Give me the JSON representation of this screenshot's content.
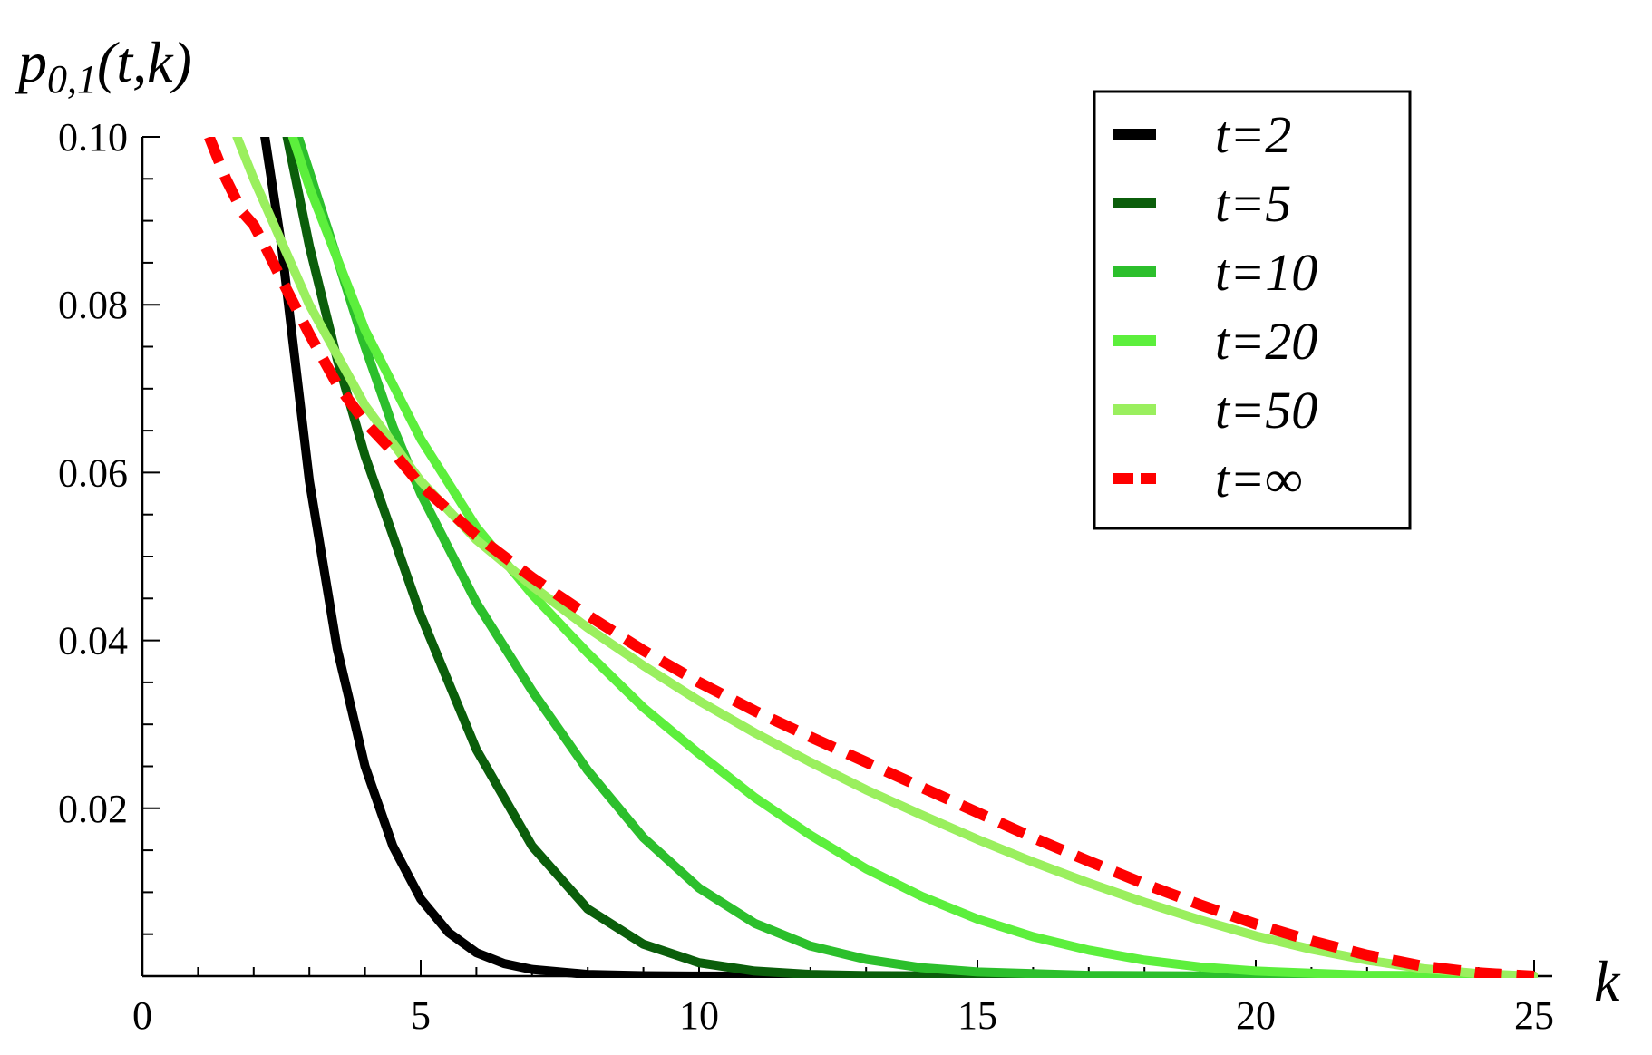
{
  "chart_data": {
    "type": "line",
    "title": "",
    "xlabel": "k",
    "ylabel": "p0,1(t,k)",
    "ylabel_parts": {
      "main": "p",
      "subscript": "0,1",
      "args": "(t,k)"
    },
    "xlim": [
      0,
      25
    ],
    "ylim": [
      0,
      0.1
    ],
    "x_ticks": [
      0,
      5,
      10,
      15,
      20,
      25
    ],
    "x_tick_labels": [
      "0",
      "5",
      "10",
      "15",
      "20",
      "25"
    ],
    "y_ticks": [
      0.02,
      0.04,
      0.06,
      0.08,
      0.1
    ],
    "y_tick_labels": [
      "0.02",
      "0.04",
      "0.06",
      "0.08",
      "0.10"
    ],
    "grid": false,
    "legend_position": "top-right",
    "series": [
      {
        "name": "t=2",
        "color": "#000000",
        "dashed": false,
        "x": [
          2.2,
          2.5,
          3,
          3.5,
          4,
          4.5,
          5,
          5.5,
          6,
          6.5,
          7,
          8,
          9,
          10,
          12,
          15,
          20,
          25
        ],
        "y": [
          0.1,
          0.087,
          0.059,
          0.039,
          0.025,
          0.0155,
          0.0092,
          0.0052,
          0.0028,
          0.0015,
          0.0008,
          0.0002,
          5e-05,
          1e-05,
          0,
          0,
          0,
          0
        ]
      },
      {
        "name": "t=5",
        "color": "#0b5e0b",
        "dashed": false,
        "x": [
          2.6,
          3,
          3.5,
          4,
          5,
          6,
          7,
          8,
          9,
          10,
          11,
          12,
          13,
          15,
          20,
          25
        ],
        "y": [
          0.1,
          0.087,
          0.0735,
          0.062,
          0.043,
          0.027,
          0.0155,
          0.008,
          0.0038,
          0.0016,
          0.0006,
          0.0002,
          7e-05,
          1e-05,
          0,
          0
        ]
      },
      {
        "name": "t=10",
        "color": "#2cbf2c",
        "dashed": false,
        "x": [
          2.8,
          3.5,
          4,
          4.5,
          5,
          6,
          7,
          8,
          9,
          10,
          11,
          12,
          13,
          14,
          15,
          17,
          20,
          25
        ],
        "y": [
          0.1,
          0.0855,
          0.075,
          0.0655,
          0.0575,
          0.0445,
          0.034,
          0.0245,
          0.0165,
          0.0105,
          0.0063,
          0.0036,
          0.002,
          0.001,
          0.0005,
          0.0001,
          0,
          0
        ]
      },
      {
        "name": "t=20",
        "color": "#5cef3c",
        "dashed": false,
        "x": [
          2.7,
          3,
          4,
          5,
          6,
          7,
          8,
          9,
          10,
          11,
          12,
          13,
          14,
          15,
          16,
          17,
          18,
          19,
          20,
          22,
          25
        ],
        "y": [
          0.1,
          0.094,
          0.077,
          0.064,
          0.0535,
          0.0455,
          0.0385,
          0.032,
          0.0265,
          0.0213,
          0.0168,
          0.0128,
          0.0095,
          0.0068,
          0.0047,
          0.0031,
          0.0019,
          0.0011,
          0.0006,
          0.0001,
          0
        ]
      },
      {
        "name": "t=50",
        "color": "#9aef5e",
        "dashed": false,
        "x": [
          1.7,
          2,
          3,
          4,
          5,
          6,
          7,
          8,
          9,
          10,
          11,
          12,
          13,
          14,
          15,
          16,
          17,
          18,
          19,
          20,
          21,
          22,
          23,
          24,
          25
        ],
        "y": [
          0.1,
          0.095,
          0.08,
          0.068,
          0.059,
          0.052,
          0.0465,
          0.0415,
          0.037,
          0.0328,
          0.029,
          0.0255,
          0.0222,
          0.0192,
          0.0163,
          0.0136,
          0.0111,
          0.0088,
          0.0067,
          0.0048,
          0.0032,
          0.0019,
          0.0009,
          0.0003,
          0
        ]
      },
      {
        "name": "t=∞",
        "color": "#ff0000",
        "dashed": true,
        "x": [
          1.2,
          1.5,
          1.8,
          2,
          2.2,
          2.5,
          3,
          3.5,
          4,
          4.5,
          5,
          6,
          7,
          8,
          9,
          10,
          11,
          12,
          13,
          14,
          15,
          16,
          17,
          18,
          19,
          20,
          21,
          22,
          23,
          24,
          25
        ],
        "y": [
          0.1,
          0.095,
          0.091,
          0.0895,
          0.087,
          0.083,
          0.0765,
          0.0705,
          0.066,
          0.0625,
          0.0585,
          0.0525,
          0.0475,
          0.043,
          0.0388,
          0.035,
          0.0316,
          0.0285,
          0.0255,
          0.0225,
          0.0195,
          0.0165,
          0.0137,
          0.011,
          0.0085,
          0.0062,
          0.0042,
          0.0025,
          0.0012,
          0.0004,
          0
        ]
      }
    ]
  }
}
